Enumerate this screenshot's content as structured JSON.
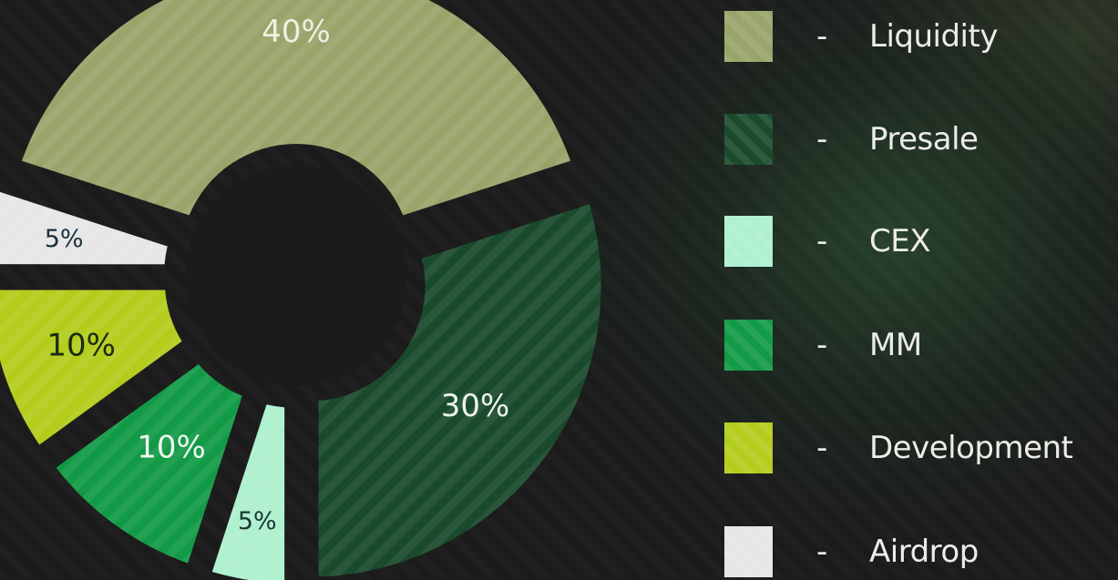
{
  "chart_data": {
    "type": "pie",
    "style": "donut",
    "categories": [
      "Liquidity",
      "Presale",
      "CEX",
      "MM",
      "Development",
      "Airdrop"
    ],
    "values": [
      40,
      30,
      5,
      10,
      10,
      5
    ],
    "value_labels": [
      "40%",
      "30%",
      "5%",
      "10%",
      "10%",
      "5%"
    ],
    "colors": [
      "#98a46a",
      "#1a4a2c",
      "#aef0d0",
      "#129a46",
      "#b4cc1c",
      "#e6e6e6"
    ],
    "label_colors": [
      "#eef0e4",
      "#ecf2ec",
      "#1a3a30",
      "#eef5ee",
      "#1a2a10",
      "#1a3040"
    ],
    "legend_placement": "right",
    "legend": [
      {
        "dash": "-",
        "label": "Liquidity"
      },
      {
        "dash": "-",
        "label": "Presale"
      },
      {
        "dash": "-",
        "label": "CEX"
      },
      {
        "dash": "-",
        "label": "MM"
      },
      {
        "dash": "-",
        "label": "Development"
      },
      {
        "dash": "-",
        "label": "Airdrop"
      }
    ]
  }
}
